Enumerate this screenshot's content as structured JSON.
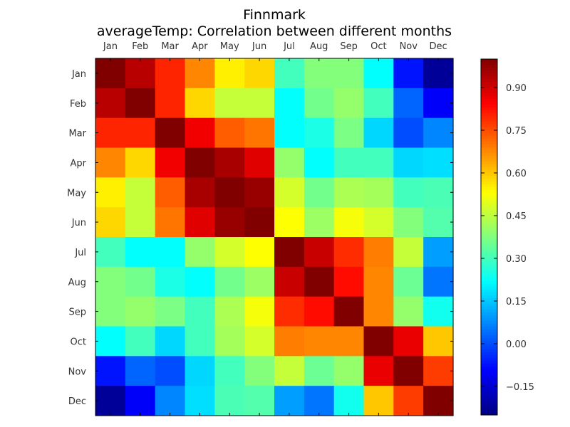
{
  "chart_data": {
    "type": "heatmap",
    "title": "Finnmark",
    "subtitle": "averageTemp: Correlation between different months",
    "x_categories": [
      "Jan",
      "Feb",
      "Mar",
      "Apr",
      "May",
      "Jun",
      "Jul",
      "Aug",
      "Sep",
      "Oct",
      "Nov",
      "Dec"
    ],
    "y_categories": [
      "Jan",
      "Feb",
      "Mar",
      "Apr",
      "May",
      "Jun",
      "Jul",
      "Aug",
      "Sep",
      "Oct",
      "Nov",
      "Dec"
    ],
    "values": [
      [
        1.0,
        0.93,
        0.8,
        0.68,
        0.55,
        0.58,
        0.3,
        0.38,
        0.38,
        0.22,
        -0.07,
        -0.22
      ],
      [
        0.93,
        1.0,
        0.8,
        0.58,
        0.46,
        0.46,
        0.22,
        0.36,
        0.4,
        0.3,
        0.03,
        -0.1
      ],
      [
        0.8,
        0.8,
        1.0,
        0.86,
        0.73,
        0.7,
        0.22,
        0.25,
        0.37,
        0.17,
        0.0,
        0.07
      ],
      [
        0.68,
        0.58,
        0.86,
        1.0,
        0.95,
        0.88,
        0.4,
        0.22,
        0.3,
        0.3,
        0.17,
        0.18
      ],
      [
        0.55,
        0.46,
        0.73,
        0.95,
        1.0,
        0.97,
        0.48,
        0.36,
        0.43,
        0.42,
        0.3,
        0.31
      ],
      [
        0.58,
        0.46,
        0.7,
        0.88,
        0.97,
        1.0,
        0.53,
        0.41,
        0.52,
        0.48,
        0.38,
        0.32
      ],
      [
        0.3,
        0.22,
        0.22,
        0.4,
        0.48,
        0.53,
        1.0,
        0.91,
        0.79,
        0.69,
        0.46,
        0.1
      ],
      [
        0.38,
        0.36,
        0.25,
        0.22,
        0.36,
        0.41,
        0.91,
        1.0,
        0.83,
        0.68,
        0.35,
        0.05
      ],
      [
        0.38,
        0.4,
        0.37,
        0.3,
        0.43,
        0.52,
        0.79,
        0.83,
        1.0,
        0.68,
        0.4,
        0.24
      ],
      [
        0.22,
        0.3,
        0.17,
        0.3,
        0.42,
        0.48,
        0.69,
        0.68,
        0.68,
        1.0,
        0.87,
        0.6
      ],
      [
        -0.07,
        0.03,
        0.0,
        0.17,
        0.3,
        0.38,
        0.46,
        0.35,
        0.4,
        0.87,
        1.0,
        0.77
      ],
      [
        -0.22,
        -0.1,
        0.07,
        0.18,
        0.31,
        0.32,
        0.1,
        0.05,
        0.24,
        0.6,
        0.77,
        1.0
      ]
    ],
    "colormap": "jet",
    "vmin": -0.25,
    "vmax": 1.0,
    "colorbar_ticks": [
      0.9,
      0.75,
      0.6,
      0.45,
      0.3,
      0.15,
      0.0,
      -0.15
    ],
    "colorbar_tick_labels": [
      "0.90",
      "0.75",
      "0.60",
      "0.45",
      "0.30",
      "0.15",
      "0.00",
      "−0.15"
    ],
    "grid": false,
    "legend": "colorbar-right"
  }
}
